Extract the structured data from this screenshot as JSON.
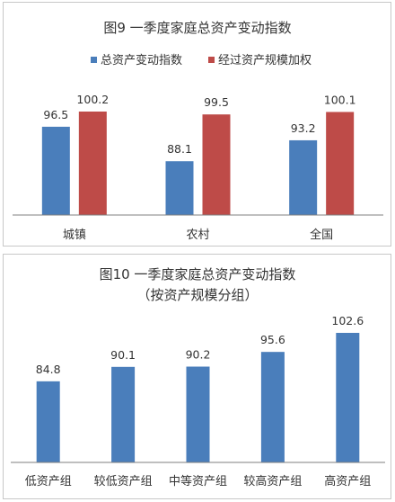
{
  "colors": {
    "blue": "#4a7ebb",
    "red": "#be4b48",
    "axis": "#7f7f7f"
  },
  "chart_data": [
    {
      "type": "bar",
      "title": "图9 一季度家庭总资产变动指数",
      "subtitle": "",
      "categories": [
        "城镇",
        "农村",
        "全国"
      ],
      "series": [
        {
          "name": "总资产变动指数",
          "values": [
            96.5,
            88.1,
            93.2
          ]
        },
        {
          "name": "经过资产规模加权",
          "values": [
            100.2,
            99.5,
            100.1
          ]
        }
      ],
      "legend": "top",
      "grid": false
    },
    {
      "type": "bar",
      "title": "图10 一季度家庭总资产变动指数",
      "subtitle": "（按资产规模分组）",
      "categories": [
        "低资产组",
        "较低资产组",
        "中等资产组",
        "较高资产组",
        "高资产组"
      ],
      "series": [
        {
          "values": [
            84.8,
            90.1,
            90.2,
            95.6,
            102.6
          ]
        }
      ],
      "grid": false
    }
  ]
}
